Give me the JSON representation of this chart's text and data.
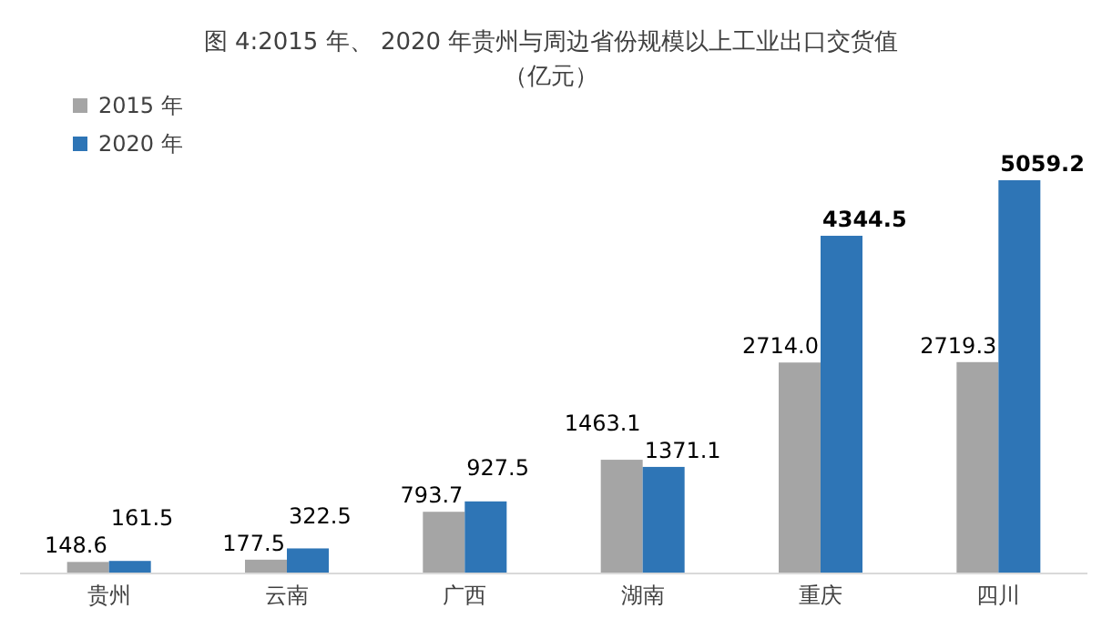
{
  "chart_data": {
    "type": "bar",
    "title": "图 4:2015 年、 2020 年贵州与周边省份规模以上工业出口交货值",
    "subtitle": "（亿元）",
    "categories": [
      "贵州",
      "云南",
      "广西",
      "湖南",
      "重庆",
      "四川"
    ],
    "series": [
      {
        "name": "2015 年",
        "color": "#a5a5a5",
        "values": [
          148.6,
          177.5,
          793.7,
          1463.1,
          2714.0,
          2719.3
        ],
        "value_labels": [
          "148.6",
          "177.5",
          "793.7",
          "1463.1",
          "2714.0",
          "2719.3"
        ]
      },
      {
        "name": "2020 年",
        "color": "#2e75b6",
        "values": [
          161.5,
          322.5,
          927.5,
          1371.1,
          4344.5,
          5059.2
        ]
      }
    ],
    "data_labels": true,
    "legend": "top left"
  }
}
